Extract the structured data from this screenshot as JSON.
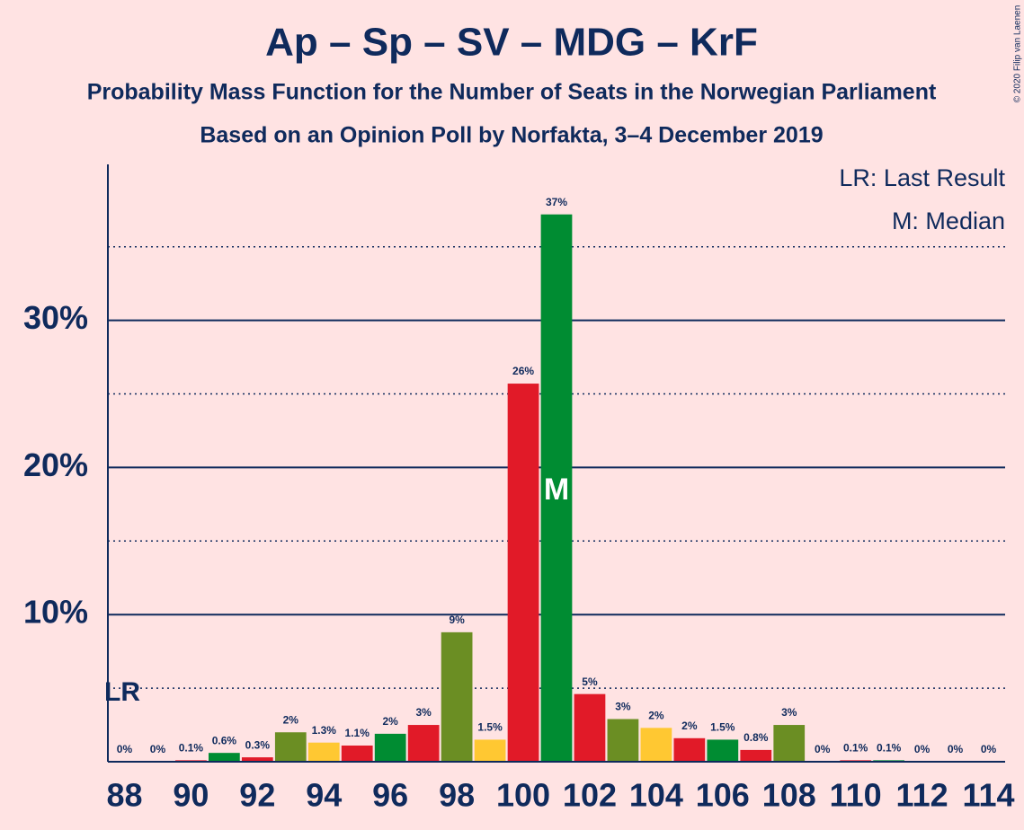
{
  "chart_data": {
    "type": "bar",
    "title": "Ap – Sp – SV – MDG – KrF",
    "subtitle": "Probability Mass Function for the Number of Seats in the Norwegian Parliament",
    "subtitle2": "Based on an Opinion Poll by Norfakta, 3–4 December 2019",
    "copyright": "© 2020 Filip van Laenen",
    "legend": [
      "LR: Last Result",
      "M: Median"
    ],
    "last_result": 88,
    "last_result_label": "LR",
    "median": 101,
    "median_label": "M",
    "categories": [
      88,
      null,
      90,
      null,
      92,
      null,
      94,
      null,
      96,
      null,
      98,
      null,
      100,
      null,
      102,
      null,
      104,
      null,
      106,
      null,
      108,
      null,
      110,
      null,
      112,
      null,
      114
    ],
    "values": [
      0,
      0,
      0.1,
      0.6,
      0.3,
      2,
      1.3,
      1.1,
      1.9,
      2.5,
      8.8,
      1.5,
      25.7,
      37.2,
      4.6,
      2.9,
      2.3,
      1.6,
      1.5,
      0.8,
      2.5,
      0,
      0.1,
      0.1,
      0,
      0,
      0
    ],
    "value_labels": [
      "0%",
      "0%",
      "0.1%",
      "0.6%",
      "0.3%",
      "2%",
      "1.3%",
      "1.1%",
      "2%",
      "3%",
      "9%",
      "1.5%",
      "26%",
      "37%",
      "5%",
      "3%",
      "2%",
      "2%",
      "1.5%",
      "0.8%",
      "3%",
      "0%",
      "0.1%",
      "0.1%",
      "0%",
      "0%",
      "0%"
    ],
    "colors": [
      "#6b8e23",
      "#ffc832",
      "#e11a28",
      "#008c32",
      "#e11a28",
      "#6b8e23",
      "#ffc832",
      "#e11a28",
      "#008c32",
      "#e11a28",
      "#6b8e23",
      "#ffc832",
      "#e11a28",
      "#008c32",
      "#e11a28",
      "#6b8e23",
      "#ffc832",
      "#e11a28",
      "#008c32",
      "#e11a28",
      "#6b8e23",
      "#ffc832",
      "#e11a28",
      "#008c32",
      "#e11a28",
      "#6b8e23",
      "#ffc832"
    ],
    "ylim": [
      0,
      40.6
    ],
    "yticks": [
      {
        "value": 10,
        "label": "10%"
      },
      {
        "value": 20,
        "label": "20%"
      },
      {
        "value": 30,
        "label": "30%"
      }
    ],
    "minor_gridlines": [
      5,
      15,
      25,
      35
    ],
    "grid": true
  }
}
